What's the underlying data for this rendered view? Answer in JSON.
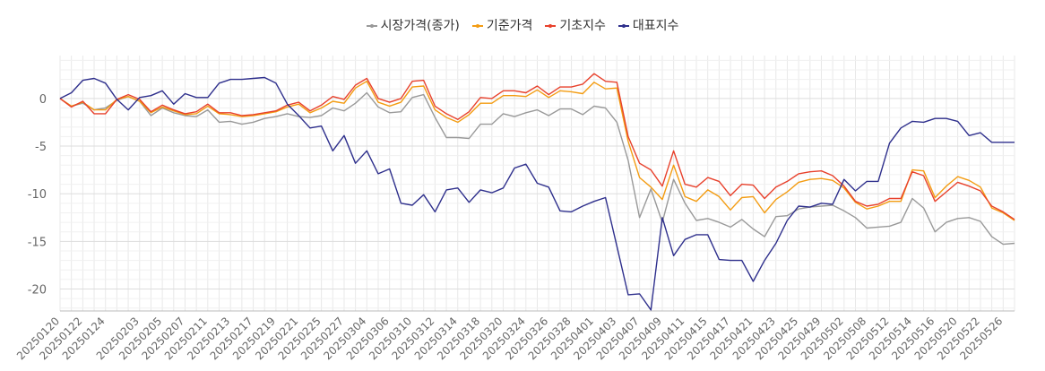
{
  "chart_data": {
    "type": "line",
    "legend_position": "top-center",
    "grid": true,
    "ylim": [
      -22.3,
      4.5
    ],
    "yticks": [
      0,
      -5,
      -10,
      -15,
      -20
    ],
    "x": [
      "20250120",
      "20250121",
      "20250122",
      "20250123",
      "20250124",
      "20250127",
      "20250131",
      "20250203",
      "20250204",
      "20250205",
      "20250206",
      "20250207",
      "20250210",
      "20250211",
      "20250212",
      "20250213",
      "20250214",
      "20250217",
      "20250218",
      "20250219",
      "20250220",
      "20250221",
      "20250224",
      "20250225",
      "20250226",
      "20250227",
      "20250228",
      "20250304",
      "20250305",
      "20250306",
      "20250307",
      "20250310",
      "20250311",
      "20250312",
      "20250313",
      "20250314",
      "20250317",
      "20250318",
      "20250319",
      "20250320",
      "20250321",
      "20250324",
      "20250325",
      "20250326",
      "20250327",
      "20250328",
      "20250331",
      "20250401",
      "20250402",
      "20250403",
      "20250404",
      "20250407",
      "20250408",
      "20250409",
      "20250410",
      "20250411",
      "20250414",
      "20250415",
      "20250416",
      "20250417",
      "20250418",
      "20250421",
      "20250422",
      "20250423",
      "20250424",
      "20250425",
      "20250428",
      "20250429",
      "20250430",
      "20250502",
      "20250507",
      "20250508",
      "20250509",
      "20250512",
      "20250513",
      "20250514",
      "20250515",
      "20250516",
      "20250519",
      "20250520",
      "20250521",
      "20250522",
      "20250523",
      "20250526",
      "20250527"
    ],
    "x_tick_labels": [
      "20250120",
      "20250122",
      "20250124",
      "20250203",
      "20250205",
      "20250207",
      "20250211",
      "20250213",
      "20250217",
      "20250219",
      "20250221",
      "20250225",
      "20250227",
      "20250304",
      "20250306",
      "20250310",
      "20250312",
      "20250314",
      "20250318",
      "20250320",
      "20250324",
      "20250326",
      "20250328",
      "20250401",
      "20250403",
      "20250407",
      "20250409",
      "20250411",
      "20250415",
      "20250417",
      "20250421",
      "20250423",
      "20250425",
      "20250429",
      "20250502",
      "20250508",
      "20250512",
      "20250514",
      "20250516",
      "20250520",
      "20250522",
      "20250526"
    ],
    "series": [
      {
        "name": "시장가격(종가)",
        "color": "#999999",
        "values": [
          0,
          -0.8,
          -0.5,
          -1.2,
          -1.0,
          -0.2,
          0.2,
          -0.3,
          -1.8,
          -1.0,
          -1.5,
          -1.8,
          -1.9,
          -1.2,
          -2.5,
          -2.4,
          -2.7,
          -2.5,
          -2.1,
          -1.9,
          -1.6,
          -1.9,
          -2.0,
          -1.8,
          -1.0,
          -1.3,
          -0.5,
          0.6,
          -0.9,
          -1.5,
          -1.4,
          0.1,
          0.4,
          -2.0,
          -4.1,
          -4.1,
          -4.2,
          -2.7,
          -2.7,
          -1.6,
          -1.9,
          -1.5,
          -1.2,
          -1.8,
          -1.1,
          -1.1,
          -1.7,
          -0.8,
          -1.0,
          -2.5,
          -6.5,
          -12.5,
          -9.5,
          -13.0,
          -8.5,
          -11.0,
          -12.8,
          -12.6,
          -13.0,
          -13.5,
          -12.7,
          -13.7,
          -14.5,
          -12.4,
          -12.3,
          -11.6,
          -11.4,
          -11.3,
          -11.2,
          -11.8,
          -12.5,
          -13.6,
          -13.5,
          -13.4,
          -13.0,
          -10.5,
          -11.5,
          -14.0,
          -13.0,
          -12.6,
          -12.5,
          -12.9,
          -14.5,
          -15.3,
          -15.2
        ]
      },
      {
        "name": "기준가격",
        "color": "#F39C12",
        "values": [
          0,
          -0.8,
          -0.4,
          -1.2,
          -1.2,
          -0.1,
          0.2,
          -0.3,
          -1.5,
          -0.9,
          -1.3,
          -1.7,
          -1.6,
          -0.8,
          -1.6,
          -1.7,
          -1.9,
          -1.8,
          -1.6,
          -1.4,
          -0.9,
          -0.6,
          -1.5,
          -1.0,
          -0.3,
          -0.5,
          1.1,
          1.8,
          -0.4,
          -0.8,
          -0.4,
          1.2,
          1.3,
          -1.2,
          -2.0,
          -2.5,
          -1.7,
          -0.5,
          -0.5,
          0.3,
          0.3,
          0.2,
          0.9,
          0.1,
          0.8,
          0.7,
          0.5,
          1.7,
          1.0,
          1.1,
          -4.5,
          -8.3,
          -9.3,
          -10.6,
          -7.0,
          -10.3,
          -10.8,
          -9.6,
          -10.3,
          -11.7,
          -10.4,
          -10.3,
          -12.0,
          -10.6,
          -9.8,
          -8.8,
          -8.5,
          -8.4,
          -8.6,
          -9.4,
          -10.9,
          -11.6,
          -11.3,
          -10.8,
          -10.8,
          -7.5,
          -7.6,
          -10.4,
          -9.2,
          -8.2,
          -8.6,
          -9.3,
          -11.5,
          -12.0,
          -12.8
        ]
      },
      {
        "name": "기초지수",
        "color": "#E8412C",
        "values": [
          0,
          -0.9,
          -0.3,
          -1.6,
          -1.6,
          -0.1,
          0.4,
          -0.1,
          -1.4,
          -0.7,
          -1.2,
          -1.6,
          -1.4,
          -0.6,
          -1.5,
          -1.5,
          -1.8,
          -1.7,
          -1.5,
          -1.3,
          -0.7,
          -0.4,
          -1.3,
          -0.7,
          0.2,
          -0.1,
          1.4,
          2.1,
          0,
          -0.4,
          0,
          1.8,
          1.9,
          -0.8,
          -1.6,
          -2.2,
          -1.4,
          0.1,
          0,
          0.8,
          0.8,
          0.6,
          1.3,
          0.4,
          1.2,
          1.2,
          1.5,
          2.6,
          1.8,
          1.7,
          -4.0,
          -6.8,
          -7.5,
          -9.2,
          -5.5,
          -9.0,
          -9.3,
          -8.3,
          -8.7,
          -10.2,
          -9.0,
          -9.1,
          -10.5,
          -9.3,
          -8.7,
          -7.9,
          -7.7,
          -7.6,
          -8.1,
          -9.2,
          -10.8,
          -11.3,
          -11.1,
          -10.5,
          -10.5,
          -7.7,
          -8.1,
          -10.8,
          -9.8,
          -8.8,
          -9.2,
          -9.7,
          -11.3,
          -11.9,
          -12.7
        ]
      },
      {
        "name": "대표지수",
        "color": "#2E2F8C",
        "values": [
          0,
          0.6,
          1.9,
          2.1,
          1.6,
          -0.1,
          -1.2,
          0.1,
          0.3,
          0.8,
          -0.6,
          0.5,
          0.1,
          0.1,
          1.6,
          2.0,
          2.0,
          2.1,
          2.2,
          1.6,
          -0.6,
          -1.8,
          -3.1,
          -2.9,
          -5.5,
          -3.9,
          -6.8,
          -5.5,
          -7.9,
          -7.4,
          -11.0,
          -11.2,
          -10.1,
          -11.9,
          -9.6,
          -9.4,
          -10.9,
          -9.6,
          -9.9,
          -9.4,
          -7.3,
          -6.9,
          -8.9,
          -9.3,
          -11.8,
          -11.9,
          -11.3,
          -10.8,
          -10.4,
          -15.5,
          -20.6,
          -20.5,
          -22.2,
          -12.5,
          -16.5,
          -14.8,
          -14.3,
          -14.3,
          -16.9,
          -17.0,
          -17.0,
          -19.2,
          -17.0,
          -15.2,
          -12.8,
          -11.3,
          -11.4,
          -11.0,
          -11.1,
          -8.5,
          -9.7,
          -8.7,
          -8.7,
          -4.7,
          -3.1,
          -2.4,
          -2.5,
          -2.1,
          -2.1,
          -2.4,
          -3.9,
          -3.6,
          -4.6,
          -4.6,
          -4.6
        ]
      }
    ]
  }
}
